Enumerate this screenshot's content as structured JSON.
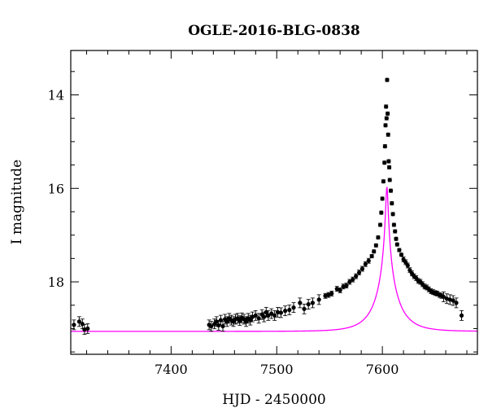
{
  "chart_data": {
    "type": "scatter",
    "title": "OGLE-2016-BLG-0838",
    "xlabel": "HJD - 2450000",
    "ylabel": "I magnitude",
    "xlim": [
      7305,
      7690
    ],
    "ylim": [
      19.55,
      13.05
    ],
    "y_inverted": true,
    "grid": false,
    "x_ticks": [
      7400,
      7500,
      7600
    ],
    "y_ticks": [
      14,
      16,
      18
    ],
    "colors": {
      "points": "#000000",
      "model": "#ff00ff",
      "frame": "#000000"
    },
    "series": [
      {
        "type": "scatter",
        "x": [
          7308,
          7313,
          7316,
          7318,
          7321,
          7436,
          7438,
          7441,
          7443,
          7445,
          7447,
          7449,
          7451,
          7453,
          7455,
          7457,
          7459,
          7461,
          7463,
          7465,
          7467,
          7469,
          7471,
          7473,
          7475,
          7477,
          7480,
          7483,
          7486,
          7488,
          7490,
          7492,
          7495,
          7498,
          7501,
          7504,
          7508,
          7512,
          7516,
          7522,
          7526,
          7530,
          7534,
          7540,
          7546,
          7549,
          7552,
          7557,
          7560,
          7563,
          7566,
          7569,
          7572,
          7575,
          7578,
          7581,
          7584,
          7587,
          7590,
          7592,
          7594,
          7596,
          7598,
          7599,
          7600,
          7601,
          7602,
          7602.5,
          7603,
          7603.5,
          7604,
          7604.5,
          7605,
          7605.5,
          7606,
          7606.5,
          7607,
          7608,
          7609,
          7610,
          7611,
          7612,
          7613,
          7614,
          7616,
          7618,
          7620,
          7622,
          7624,
          7626,
          7628,
          7630,
          7632,
          7634,
          7636,
          7638,
          7640,
          7642,
          7644,
          7646,
          7648,
          7650,
          7652,
          7654,
          7656,
          7658,
          7661,
          7664,
          7667,
          7670,
          7675
        ],
        "y": [
          18.92,
          18.85,
          18.9,
          19.02,
          19.0,
          18.92,
          18.95,
          18.9,
          18.85,
          18.93,
          18.82,
          18.95,
          18.8,
          18.85,
          18.78,
          18.82,
          18.85,
          18.8,
          18.78,
          18.83,
          18.77,
          18.8,
          18.85,
          18.78,
          18.82,
          18.75,
          18.72,
          18.78,
          18.7,
          18.75,
          18.65,
          18.72,
          18.68,
          18.72,
          18.65,
          18.66,
          18.62,
          18.6,
          18.55,
          18.45,
          18.58,
          18.48,
          18.45,
          18.38,
          18.3,
          18.28,
          18.25,
          18.15,
          18.18,
          18.1,
          18.08,
          18.0,
          17.95,
          17.88,
          17.8,
          17.72,
          17.62,
          17.55,
          17.45,
          17.35,
          17.22,
          17.05,
          16.78,
          16.52,
          16.22,
          15.85,
          15.45,
          15.1,
          14.65,
          14.25,
          14.5,
          13.68,
          14.4,
          14.85,
          15.42,
          15.55,
          15.82,
          16.05,
          16.32,
          16.55,
          16.78,
          16.92,
          17.08,
          17.2,
          17.32,
          17.42,
          17.52,
          17.58,
          17.65,
          17.75,
          17.82,
          17.88,
          17.92,
          17.98,
          18.0,
          18.05,
          18.1,
          18.12,
          18.16,
          18.2,
          18.22,
          18.24,
          18.25,
          18.28,
          18.3,
          18.32,
          18.36,
          18.38,
          18.4,
          18.45,
          18.72
        ]
      },
      {
        "type": "line",
        "name": "model",
        "t0": 7604.3,
        "u0": 0.0455,
        "tE": 21.8,
        "Ibase": 19.06,
        "fs": 0.78
      }
    ]
  }
}
